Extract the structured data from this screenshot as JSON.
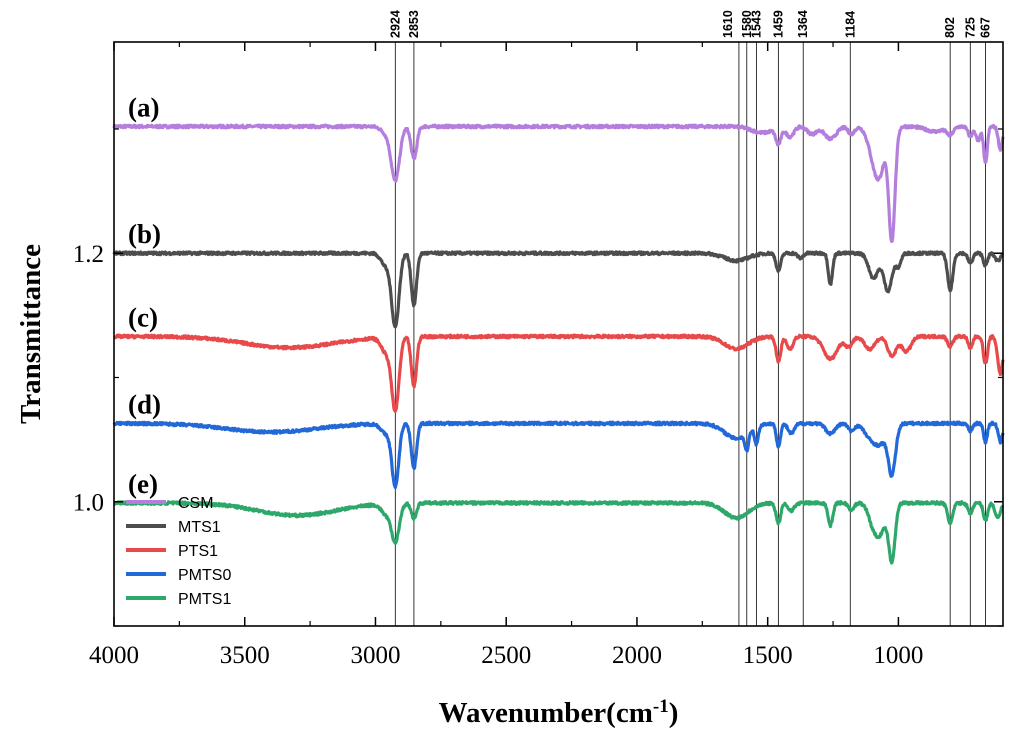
{
  "chart_data": {
    "type": "line",
    "title": "",
    "xlabel": "Wavenumber(cm",
    "xlabel_sup": "-1",
    "xlabel_close": ")",
    "ylabel": "Transmittance",
    "xlim": [
      4000,
      600
    ],
    "ylim": [
      0.9,
      1.37
    ],
    "x_reversed": true,
    "xticks": [
      4000,
      3500,
      3000,
      2500,
      2000,
      1500,
      1000
    ],
    "xtick_labels": [
      "4000",
      "3500",
      "3000",
      "2500",
      "2000",
      "1500",
      "1000"
    ],
    "yticks": [
      1.0,
      1.2
    ],
    "ytick_labels": [
      "1.0",
      "1.2"
    ],
    "grid": false,
    "legend_position": "bottom-left",
    "peak_lines": [
      2924,
      2853,
      1610,
      1580,
      1543,
      1459,
      1364,
      1184,
      802,
      725,
      667
    ],
    "peak_labels": [
      "2924",
      "2853",
      "1610",
      "1580",
      "1543",
      "1459",
      "1364",
      "1184",
      "802",
      "725",
      "667"
    ],
    "series": [
      {
        "name": "CSM",
        "tag": "(a)",
        "color": "#b47fdc",
        "baseline": 1.302,
        "tag_x": 3870,
        "features": [
          [
            2960,
            -0.005,
            18
          ],
          [
            2924,
            -0.043,
            16
          ],
          [
            2853,
            -0.026,
            11
          ],
          [
            1520,
            -0.005,
            40
          ],
          [
            1459,
            -0.013,
            10
          ],
          [
            1415,
            -0.008,
            15
          ],
          [
            1330,
            -0.006,
            18
          ],
          [
            1260,
            -0.01,
            22
          ],
          [
            1180,
            -0.006,
            12
          ],
          [
            1095,
            -0.02,
            22
          ],
          [
            1025,
            -0.09,
            12
          ],
          [
            1070,
            -0.03,
            20
          ],
          [
            860,
            -0.004,
            35
          ],
          [
            802,
            -0.006,
            12
          ],
          [
            725,
            -0.008,
            9
          ],
          [
            695,
            -0.012,
            8
          ],
          [
            667,
            -0.03,
            7
          ],
          [
            610,
            -0.018,
            8
          ]
        ]
      },
      {
        "name": "MTS1",
        "tag": "(b)",
        "color": "#4d4d4d",
        "baseline": 1.2,
        "tag_x": 3870,
        "features": [
          [
            2960,
            -0.01,
            18
          ],
          [
            2924,
            -0.058,
            14
          ],
          [
            2853,
            -0.042,
            10
          ],
          [
            1620,
            -0.006,
            45
          ],
          [
            1459,
            -0.014,
            9
          ],
          [
            1375,
            -0.004,
            10
          ],
          [
            1260,
            -0.025,
            8
          ],
          [
            1095,
            -0.02,
            18
          ],
          [
            1040,
            -0.03,
            16
          ],
          [
            1000,
            -0.01,
            10
          ],
          [
            802,
            -0.03,
            10
          ],
          [
            725,
            -0.008,
            9
          ],
          [
            667,
            -0.01,
            8
          ],
          [
            620,
            -0.006,
            10
          ]
        ]
      },
      {
        "name": "PTS1",
        "tag": "(c)",
        "color": "#e8494b",
        "baseline": 1.133,
        "tag_x": 3870,
        "features": [
          [
            3330,
            -0.009,
            170
          ],
          [
            2960,
            -0.012,
            18
          ],
          [
            2924,
            -0.058,
            14
          ],
          [
            2853,
            -0.04,
            10
          ],
          [
            1620,
            -0.01,
            45
          ],
          [
            1459,
            -0.02,
            9
          ],
          [
            1415,
            -0.01,
            12
          ],
          [
            1260,
            -0.018,
            26
          ],
          [
            1190,
            -0.008,
            14
          ],
          [
            1110,
            -0.01,
            20
          ],
          [
            1025,
            -0.016,
            16
          ],
          [
            970,
            -0.012,
            18
          ],
          [
            802,
            -0.008,
            10
          ],
          [
            725,
            -0.01,
            8
          ],
          [
            667,
            -0.022,
            8
          ],
          [
            610,
            -0.03,
            10
          ]
        ]
      },
      {
        "name": "PMTS0",
        "tag": "(d)",
        "color": "#2268d8",
        "baseline": 1.063,
        "tag_x": 3870,
        "features": [
          [
            3400,
            -0.007,
            170
          ],
          [
            2960,
            -0.008,
            18
          ],
          [
            2924,
            -0.05,
            13
          ],
          [
            2853,
            -0.036,
            10
          ],
          [
            1620,
            -0.012,
            45
          ],
          [
            1580,
            -0.014,
            7
          ],
          [
            1543,
            -0.014,
            7
          ],
          [
            1459,
            -0.018,
            8
          ],
          [
            1410,
            -0.008,
            12
          ],
          [
            1260,
            -0.008,
            18
          ],
          [
            1180,
            -0.006,
            12
          ],
          [
            1110,
            -0.01,
            22
          ],
          [
            1025,
            -0.04,
            14
          ],
          [
            1070,
            -0.015,
            22
          ],
          [
            725,
            -0.006,
            8
          ],
          [
            667,
            -0.015,
            7
          ],
          [
            610,
            -0.015,
            8
          ]
        ]
      },
      {
        "name": "PMTS1",
        "tag": "(e)",
        "color": "#2ea86a",
        "baseline": 0.999,
        "tag_x": 3870,
        "features": [
          [
            3300,
            -0.01,
            150
          ],
          [
            2960,
            -0.008,
            18
          ],
          [
            2924,
            -0.03,
            15
          ],
          [
            2853,
            -0.012,
            10
          ],
          [
            1620,
            -0.012,
            45
          ],
          [
            1459,
            -0.016,
            9
          ],
          [
            1410,
            -0.006,
            12
          ],
          [
            1260,
            -0.018,
            9
          ],
          [
            1180,
            -0.006,
            10
          ],
          [
            1095,
            -0.018,
            18
          ],
          [
            1025,
            -0.046,
            12
          ],
          [
            1065,
            -0.02,
            18
          ],
          [
            802,
            -0.016,
            10
          ],
          [
            725,
            -0.008,
            9
          ],
          [
            667,
            -0.014,
            8
          ],
          [
            620,
            -0.012,
            10
          ]
        ]
      }
    ]
  }
}
